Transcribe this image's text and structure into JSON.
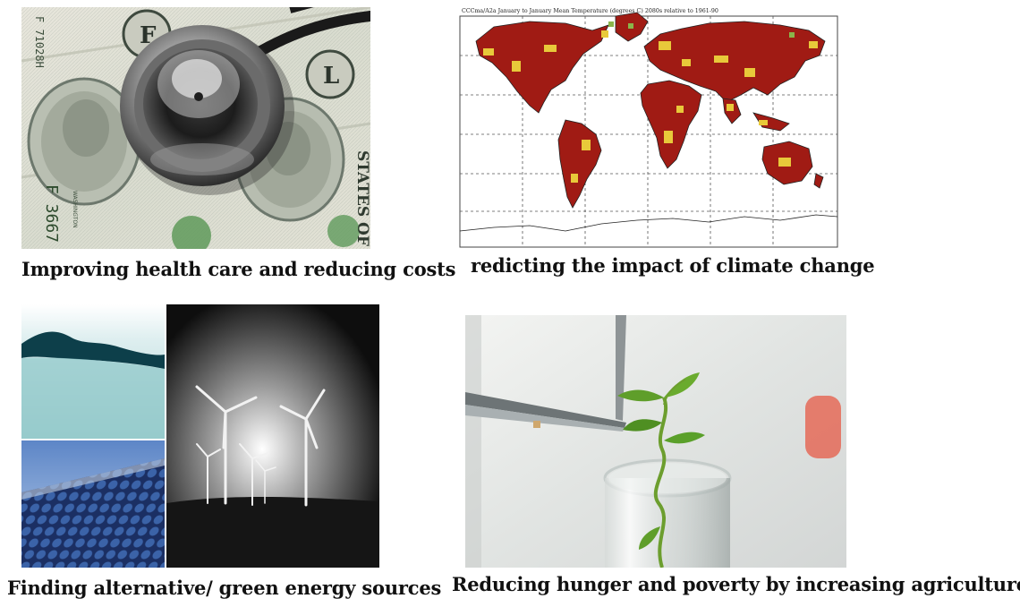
{
  "panels": [
    {
      "id": "health",
      "caption": "Improving health care and reducing costs",
      "money_text": {
        "serial_top": "F 71028H",
        "serial_bottom": "F 3667",
        "states": "STATES OF",
        "denom_left": "F",
        "denom_right": "L",
        "washington": "WASHINGTON"
      }
    },
    {
      "id": "climate",
      "caption": "redicting the impact of climate change",
      "map_title": "CCCma/A2a  January to January  Mean Temperature (degrees C)  2080s  relative to 1961-90"
    },
    {
      "id": "energy",
      "caption": "Finding alternative/ green energy sources"
    },
    {
      "id": "agriculture",
      "caption": "Reducing hunger and poverty by increasing agriculture"
    }
  ]
}
